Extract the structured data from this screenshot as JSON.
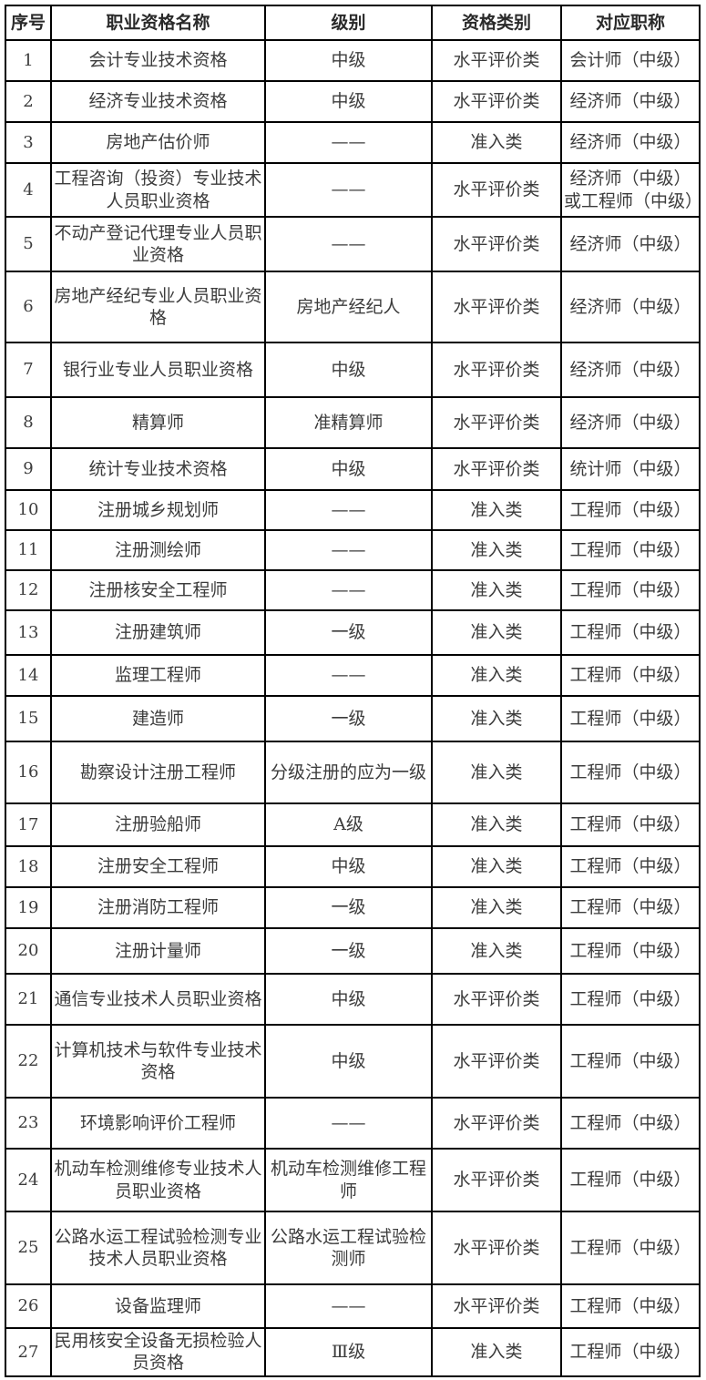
{
  "table": {
    "headers": [
      "序号",
      "职业资格名称",
      "级别",
      "资格类别",
      "对应职称"
    ],
    "rows": [
      {
        "num": "1",
        "name": "会计专业技术资格",
        "level": "中级",
        "category": "水平评价类",
        "title": "会计师（中级）"
      },
      {
        "num": "2",
        "name": "经济专业技术资格",
        "level": "中级",
        "category": "水平评价类",
        "title": "经济师（中级）"
      },
      {
        "num": "3",
        "name": "房地产估价师",
        "level": "——",
        "category": "准入类",
        "title": "经济师（中级）"
      },
      {
        "num": "4",
        "name": "工程咨询（投资）专业技术\n人员职业资格",
        "level": "——",
        "category": "水平评价类",
        "title": "经济师（中级）\n或工程师（中级）"
      },
      {
        "num": "5",
        "name": "不动产登记代理专业人员职\n业资格",
        "level": "——",
        "category": "水平评价类",
        "title": "经济师（中级）"
      },
      {
        "num": "6",
        "name": "房地产经纪专业人员职业资\n格",
        "level": "房地产经纪人",
        "category": "水平评价类",
        "title": "经济师（中级）"
      },
      {
        "num": "7",
        "name": "银行业专业人员职业资格",
        "level": "中级",
        "category": "水平评价类",
        "title": "经济师（中级）"
      },
      {
        "num": "8",
        "name": "精算师",
        "level": "准精算师",
        "category": "水平评价类",
        "title": "经济师（中级）"
      },
      {
        "num": "9",
        "name": "统计专业技术资格",
        "level": "中级",
        "category": "水平评价类",
        "title": "统计师（中级）"
      },
      {
        "num": "10",
        "name": "注册城乡规划师",
        "level": "——",
        "category": "准入类",
        "title": "工程师（中级）"
      },
      {
        "num": "11",
        "name": "注册测绘师",
        "level": "——",
        "category": "准入类",
        "title": "工程师（中级）"
      },
      {
        "num": "12",
        "name": "注册核安全工程师",
        "level": "——",
        "category": "准入类",
        "title": "工程师（中级）"
      },
      {
        "num": "13",
        "name": "注册建筑师",
        "level": "一级",
        "category": "准入类",
        "title": "工程师（中级）"
      },
      {
        "num": "14",
        "name": "监理工程师",
        "level": "——",
        "category": "准入类",
        "title": "工程师（中级）"
      },
      {
        "num": "15",
        "name": "建造师",
        "level": "一级",
        "category": "准入类",
        "title": "工程师（中级）"
      },
      {
        "num": "16",
        "name": "勘察设计注册工程师",
        "level": "分级注册的应为一级",
        "category": "准入类",
        "title": "工程师（中级）"
      },
      {
        "num": "17",
        "name": "注册验船师",
        "level": "A级",
        "category": "准入类",
        "title": "工程师（中级）"
      },
      {
        "num": "18",
        "name": "注册安全工程师",
        "level": "中级",
        "category": "准入类",
        "title": "工程师（中级）"
      },
      {
        "num": "19",
        "name": "注册消防工程师",
        "level": "一级",
        "category": "准入类",
        "title": "工程师（中级）"
      },
      {
        "num": "20",
        "name": "注册计量师",
        "level": "一级",
        "category": "准入类",
        "title": "工程师（中级）"
      },
      {
        "num": "21",
        "name": "通信专业技术人员职业资格",
        "level": "中级",
        "category": "水平评价类",
        "title": "工程师（中级）"
      },
      {
        "num": "22",
        "name": "计算机技术与软件专业技术\n资格",
        "level": "中级",
        "category": "水平评价类",
        "title": "工程师（中级）"
      },
      {
        "num": "23",
        "name": "环境影响评价工程师",
        "level": "——",
        "category": "水平评价类",
        "title": "工程师（中级）"
      },
      {
        "num": "24",
        "name": "机动车检测维修专业技术人\n员职业资格",
        "level": "机动车检测维修工程\n师",
        "category": "水平评价类",
        "title": "工程师（中级）"
      },
      {
        "num": "25",
        "name": "公路水运工程试验检测专业\n技术人员职业资格",
        "level": "公路水运工程试验检\n测师",
        "category": "水平评价类",
        "title": "工程师（中级）"
      },
      {
        "num": "26",
        "name": "设备监理师",
        "level": "——",
        "category": "水平评价类",
        "title": "工程师（中级）"
      },
      {
        "num": "27",
        "name": "民用核安全设备无损检验人\n员资格",
        "level": "Ⅲ级",
        "category": "准入类",
        "title": "工程师（中级）"
      }
    ]
  },
  "colors": {
    "border": "#000000",
    "header_text": "#2a2a2a",
    "body_text": "#3c3c3c",
    "page_background": "#ffffff"
  }
}
